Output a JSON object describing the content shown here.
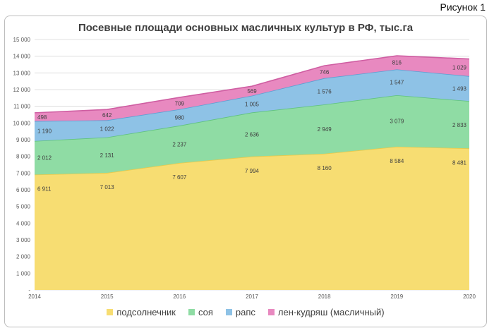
{
  "figure_label": "Рисунок 1",
  "chart_data": {
    "type": "area",
    "stacked": true,
    "title": "Посевные площади основных масличных культур в РФ, тыс.га",
    "x": [
      "2014",
      "2015",
      "2016",
      "2017",
      "2018",
      "2019",
      "2020"
    ],
    "ylim": [
      0,
      15000
    ],
    "yticks": [
      {
        "v": 0,
        "label": "-"
      },
      {
        "v": 1000,
        "label": "1 000"
      },
      {
        "v": 2000,
        "label": "2 000"
      },
      {
        "v": 3000,
        "label": "3 000"
      },
      {
        "v": 4000,
        "label": "4 000"
      },
      {
        "v": 5000,
        "label": "5 000"
      },
      {
        "v": 6000,
        "label": "6 000"
      },
      {
        "v": 7000,
        "label": "7 000"
      },
      {
        "v": 8000,
        "label": "8 000"
      },
      {
        "v": 9000,
        "label": "9 000"
      },
      {
        "v": 10000,
        "label": "10 000"
      },
      {
        "v": 11000,
        "label": "11 000"
      },
      {
        "v": 12000,
        "label": "12 000"
      },
      {
        "v": 13000,
        "label": "13 000"
      },
      {
        "v": 14000,
        "label": "14 000"
      },
      {
        "v": 15000,
        "label": "15 000"
      }
    ],
    "grid": true,
    "legend_position": "bottom",
    "series": [
      {
        "name": "подсолнечник",
        "color": "#f7dd72",
        "edge": "#e8c94a",
        "values": [
          6911,
          7013,
          7607,
          7994,
          8160,
          8584,
          8481
        ],
        "labels": [
          "6 911",
          "7 013",
          "7 607",
          "7 994",
          "8 160",
          "8 584",
          "8 481"
        ]
      },
      {
        "name": "соя",
        "color": "#8fdca4",
        "edge": "#5fc27d",
        "values": [
          2012,
          2131,
          2237,
          2636,
          2949,
          3079,
          2833
        ],
        "labels": [
          "2 012",
          "2 131",
          "2 237",
          "2 636",
          "2 949",
          "3 079",
          "2 833"
        ]
      },
      {
        "name": "рапс",
        "color": "#8ec2e6",
        "edge": "#5a9fd2",
        "values": [
          1190,
          1022,
          980,
          1005,
          1576,
          1547,
          1493
        ],
        "labels": [
          "1 190",
          "1 022",
          "980",
          "1 005",
          "1 576",
          "1 547",
          "1 493"
        ]
      },
      {
        "name": "лен-кудряш (масличный)",
        "color": "#e889c0",
        "edge": "#cf5ea2",
        "values": [
          498,
          642,
          709,
          569,
          746,
          816,
          1029
        ],
        "labels": [
          "498",
          "642",
          "709",
          "569",
          "746",
          "816",
          "1 029"
        ]
      }
    ]
  }
}
